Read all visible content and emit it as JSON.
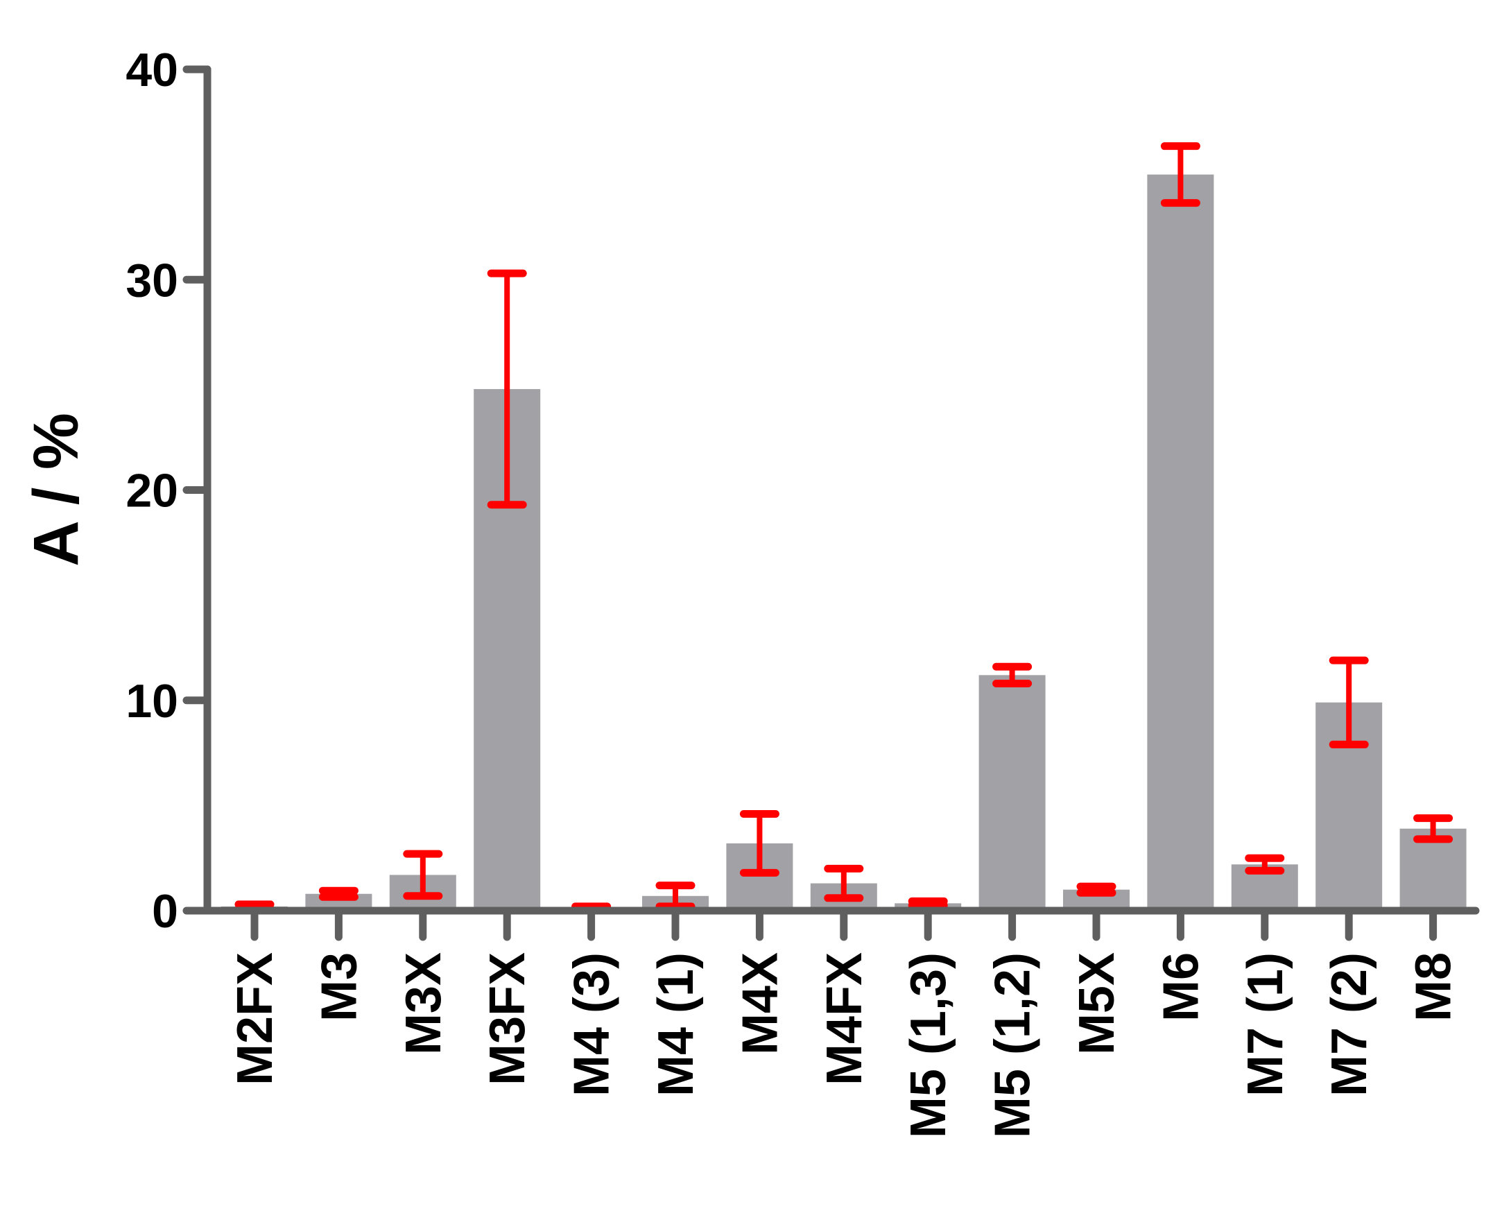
{
  "chart_data": {
    "type": "bar",
    "title": "",
    "xlabel": "",
    "ylabel": "A / %",
    "ylim": [
      0,
      40
    ],
    "yticks": [
      0,
      10,
      20,
      30,
      40
    ],
    "grid": false,
    "categories": [
      "M2FX",
      "M3",
      "M3X",
      "M3FX",
      "M4 (3)",
      "M4 (1)",
      "M4X",
      "M4FX",
      "M5 (1,3)",
      "M5 (1,2)",
      "M5X",
      "M6",
      "M7 (1)",
      "M7 (2)",
      "M8"
    ],
    "values": [
      0.2,
      0.8,
      1.7,
      24.8,
      0.15,
      0.7,
      3.2,
      1.3,
      0.35,
      11.2,
      1.0,
      35.0,
      2.2,
      9.9,
      3.9
    ],
    "errors": [
      0.1,
      0.15,
      1.0,
      5.5,
      0.05,
      0.5,
      1.4,
      0.7,
      0.1,
      0.4,
      0.15,
      1.35,
      0.3,
      2.0,
      0.5
    ],
    "colors": {
      "bar": "#a2a2a6",
      "error": "#ff0000",
      "axis": "#5f5f5f",
      "text": "#000000"
    }
  }
}
